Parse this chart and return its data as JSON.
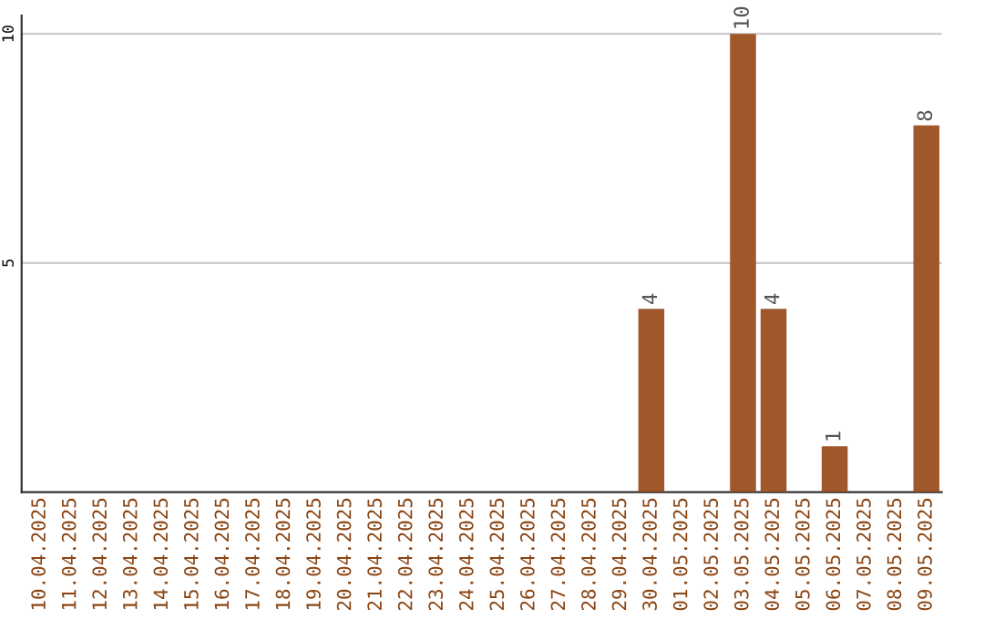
{
  "chart_data": {
    "type": "bar",
    "categories": [
      "10.04.2025",
      "11.04.2025",
      "12.04.2025",
      "13.04.2025",
      "14.04.2025",
      "15.04.2025",
      "16.04.2025",
      "17.04.2025",
      "18.04.2025",
      "19.04.2025",
      "20.04.2025",
      "21.04.2025",
      "22.04.2025",
      "23.04.2025",
      "24.04.2025",
      "25.04.2025",
      "26.04.2025",
      "27.04.2025",
      "28.04.2025",
      "29.04.2025",
      "30.04.2025",
      "01.05.2025",
      "02.05.2025",
      "03.05.2025",
      "04.05.2025",
      "05.05.2025",
      "06.05.2025",
      "07.05.2025",
      "08.05.2025",
      "09.05.2025"
    ],
    "values": [
      0,
      0,
      0,
      0,
      0,
      0,
      0,
      0,
      0,
      0,
      0,
      0,
      0,
      0,
      0,
      0,
      0,
      0,
      0,
      0,
      4,
      0,
      0,
      10,
      4,
      0,
      1,
      0,
      0,
      8
    ],
    "value_labels": [
      null,
      null,
      null,
      null,
      null,
      null,
      null,
      null,
      null,
      null,
      null,
      null,
      null,
      null,
      null,
      null,
      null,
      null,
      null,
      null,
      "4",
      null,
      null,
      "10",
      "4",
      null,
      "1",
      null,
      null,
      "8"
    ],
    "color": "#a0572a",
    "ylim": [
      0,
      10.4
    ],
    "yticks": [
      5,
      10
    ],
    "grid": "y",
    "legend": false
  }
}
